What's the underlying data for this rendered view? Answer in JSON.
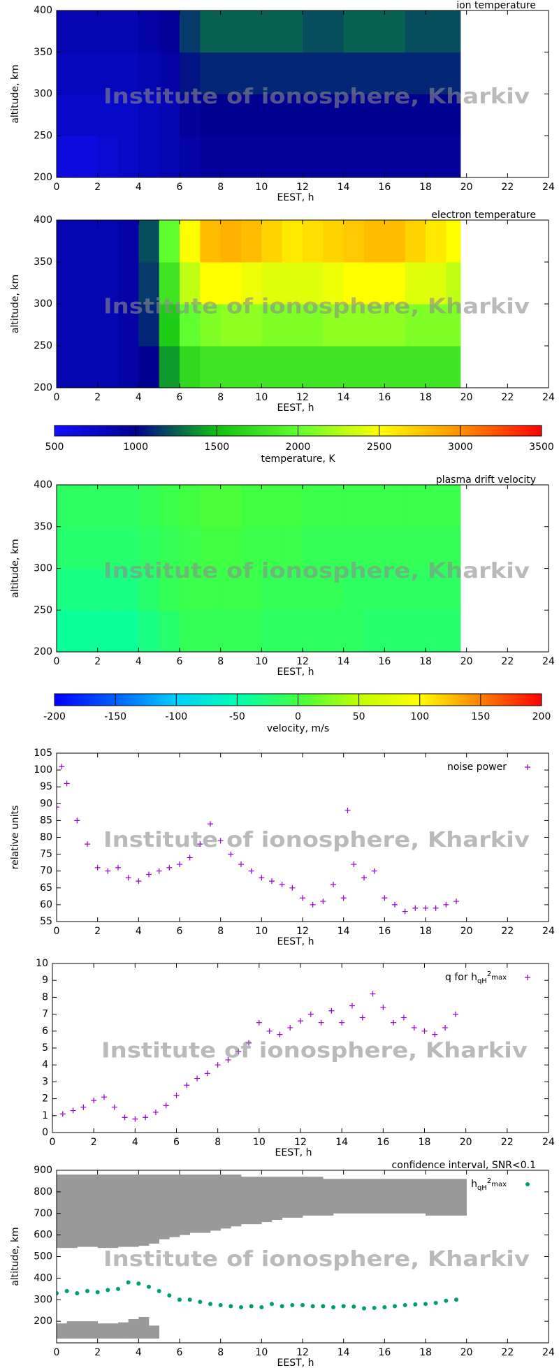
{
  "chart_data": [
    {
      "type": "heatmap",
      "title": "ion temperature",
      "xlabel": "EEST, h",
      "ylabel": "altitude, km",
      "watermark": "Institute of ionosphere, Kharkiv",
      "xlim": [
        0,
        24
      ],
      "xticks": [
        0,
        2,
        4,
        6,
        8,
        10,
        12,
        14,
        16,
        18,
        20,
        22,
        24
      ],
      "ylim": [
        200,
        400
      ],
      "yticks": [
        200,
        250,
        300,
        350,
        400
      ],
      "clim": [
        500,
        3500
      ],
      "colors": [
        "#1010ff",
        "#000090",
        "#10c010",
        "#60ff30",
        "#ffff00",
        "#ff9000",
        "#ff0000"
      ],
      "xbins": [
        0,
        1,
        2,
        3,
        4,
        5,
        6,
        7,
        8,
        9,
        10,
        11,
        12,
        13,
        14,
        15,
        16,
        17,
        18,
        19,
        19.7
      ],
      "ybins": [
        200,
        250,
        300,
        350,
        400
      ],
      "z": [
        [
          650,
          650,
          700,
          750,
          800,
          850,
          900,
          950,
          950,
          950,
          950,
          950,
          950,
          950,
          950,
          950,
          950,
          950,
          950,
          950
        ],
        [
          750,
          750,
          750,
          750,
          800,
          850,
          950,
          1000,
          1000,
          1000,
          1000,
          1000,
          1000,
          1000,
          1000,
          1000,
          1000,
          1000,
          1000,
          1000
        ],
        [
          800,
          800,
          800,
          800,
          850,
          900,
          1050,
          1100,
          1100,
          1100,
          1100,
          1100,
          1100,
          1100,
          1100,
          1100,
          1100,
          1100,
          1100,
          1100
        ],
        [
          850,
          850,
          850,
          850,
          900,
          950,
          1150,
          1250,
          1250,
          1250,
          1250,
          1250,
          1200,
          1200,
          1250,
          1250,
          1250,
          1200,
          1200,
          1200
        ]
      ]
    },
    {
      "type": "heatmap",
      "title": "electron temperature",
      "xlabel": "EEST, h",
      "ylabel": "altitude, km",
      "watermark": "Institute of ionosphere, Kharkiv",
      "xlim": [
        0,
        24
      ],
      "xticks": [
        0,
        2,
        4,
        6,
        8,
        10,
        12,
        14,
        16,
        18,
        20,
        22,
        24
      ],
      "ylim": [
        200,
        400
      ],
      "yticks": [
        200,
        250,
        300,
        350,
        400
      ],
      "clim": [
        500,
        3500
      ],
      "colors": [
        "#1010ff",
        "#000090",
        "#10c010",
        "#60ff30",
        "#ffff00",
        "#ff9000",
        "#ff0000"
      ],
      "xbins": [
        0,
        1,
        2,
        3,
        4,
        5,
        6,
        7,
        8,
        9,
        10,
        11,
        12,
        13,
        14,
        15,
        16,
        17,
        18,
        19,
        19.7
      ],
      "ybins": [
        200,
        250,
        300,
        350,
        400
      ],
      "z": [
        [
          850,
          850,
          850,
          900,
          1000,
          1400,
          1700,
          1800,
          1800,
          1800,
          1800,
          1800,
          1800,
          1800,
          1800,
          1800,
          1800,
          1800,
          1800,
          1800
        ],
        [
          850,
          850,
          850,
          900,
          1100,
          1600,
          2000,
          2100,
          2150,
          2150,
          2100,
          2100,
          2100,
          2150,
          2150,
          2150,
          2150,
          2100,
          2100,
          2100
        ],
        [
          850,
          850,
          850,
          900,
          1150,
          1800,
          2300,
          2500,
          2500,
          2450,
          2400,
          2400,
          2400,
          2450,
          2500,
          2500,
          2500,
          2400,
          2400,
          2300
        ],
        [
          850,
          850,
          850,
          900,
          1200,
          2000,
          2500,
          2800,
          2850,
          2800,
          2700,
          2600,
          2650,
          2700,
          2750,
          2800,
          2800,
          2700,
          2600,
          2500
        ]
      ],
      "colorbar": {
        "label": "temperature, K",
        "ticks": [
          500,
          1000,
          1500,
          2000,
          2500,
          3000,
          3500
        ]
      }
    },
    {
      "type": "heatmap",
      "title": "plasma drift velocity",
      "xlabel": "EEST, h",
      "ylabel": "altitude, km",
      "watermark": "Institute of ionosphere, Kharkiv",
      "xlim": [
        0,
        24
      ],
      "xticks": [
        0,
        2,
        4,
        6,
        8,
        10,
        12,
        14,
        16,
        18,
        20,
        22,
        24
      ],
      "ylim": [
        200,
        400
      ],
      "yticks": [
        200,
        250,
        300,
        350,
        400
      ],
      "clim": [
        -200,
        200
      ],
      "colors": [
        "#0000ff",
        "#0060ff",
        "#00d0ff",
        "#00ffb0",
        "#40ff40",
        "#c0ff00",
        "#ffff00",
        "#ff8000",
        "#ff0000"
      ],
      "xbins": [
        0,
        1,
        2,
        3,
        4,
        5,
        6,
        7,
        8,
        9,
        10,
        11,
        12,
        13,
        14,
        15,
        16,
        17,
        18,
        19,
        19.7
      ],
      "ybins": [
        200,
        250,
        300,
        350,
        400
      ],
      "z": [
        [
          -40,
          -40,
          -40,
          -40,
          -30,
          -20,
          -10,
          -10,
          -10,
          -10,
          -15,
          -15,
          -15,
          -15,
          -15,
          -20,
          -20,
          -20,
          -20,
          -20
        ],
        [
          -30,
          -30,
          -30,
          -30,
          -20,
          -10,
          -5,
          -5,
          -5,
          -5,
          -10,
          -10,
          -10,
          -10,
          -15,
          -15,
          -15,
          -15,
          -15,
          -15
        ],
        [
          -20,
          -20,
          -20,
          -20,
          -15,
          -10,
          -5,
          0,
          0,
          -5,
          -5,
          -5,
          -10,
          -10,
          -10,
          -10,
          -10,
          -10,
          -10,
          -10
        ],
        [
          -15,
          -15,
          -15,
          -15,
          -10,
          -5,
          0,
          5,
          5,
          0,
          0,
          0,
          -5,
          -5,
          -5,
          -5,
          -5,
          -5,
          -5,
          -5
        ]
      ],
      "colorbar": {
        "label": "velocity, m/s",
        "ticks": [
          -200,
          -150,
          -100,
          -50,
          0,
          50,
          100,
          150,
          200
        ]
      }
    },
    {
      "type": "scatter",
      "xlabel": "EEST, h",
      "ylabel": "relative units",
      "watermark": "Institute of ionosphere, Kharkiv",
      "xlim": [
        0,
        24
      ],
      "xticks": [
        0,
        2,
        4,
        6,
        8,
        10,
        12,
        14,
        16,
        18,
        20,
        22,
        24
      ],
      "ylim": [
        55,
        105
      ],
      "yticks": [
        55,
        60,
        65,
        70,
        75,
        80,
        85,
        90,
        95,
        100,
        105
      ],
      "series": [
        {
          "name": "noise power",
          "color": "#9400d3",
          "marker": "plus",
          "x": [
            0,
            0.25,
            0.5,
            1,
            1.5,
            2,
            2.5,
            3,
            3.5,
            4,
            4.5,
            5,
            5.5,
            6,
            6.5,
            7,
            7.5,
            8,
            8.5,
            9,
            9.5,
            10,
            10.5,
            11,
            11.5,
            12,
            12.5,
            13,
            13.5,
            14,
            14.2,
            14.5,
            15,
            15.5,
            16,
            16.5,
            17,
            17.5,
            18,
            18.5,
            19,
            19.5
          ],
          "values": [
            89,
            101,
            96,
            85,
            78,
            71,
            70,
            71,
            68,
            67,
            69,
            70,
            71,
            72,
            74,
            78,
            84,
            79,
            75,
            72,
            70,
            68,
            67,
            66,
            65,
            62,
            60,
            61,
            66,
            62,
            88,
            72,
            68,
            70,
            62,
            60,
            58,
            59,
            59,
            59,
            60,
            61
          ]
        }
      ]
    },
    {
      "type": "scatter",
      "xlabel": "EEST, h",
      "watermark": "Institute of ionosphere, Kharkiv",
      "xlim": [
        0,
        24
      ],
      "xticks": [
        0,
        2,
        4,
        6,
        8,
        10,
        12,
        14,
        16,
        18,
        20,
        22,
        24
      ],
      "ylim": [
        0,
        10
      ],
      "yticks": [
        0,
        1,
        2,
        3,
        4,
        5,
        6,
        7,
        8,
        9,
        10
      ],
      "series": [
        {
          "name": [
            "q for h",
            "qH",
            "2",
            "max"
          ],
          "color": "#9400d3",
          "marker": "plus",
          "x": [
            0,
            0.5,
            1,
            1.5,
            2,
            2.5,
            3,
            3.5,
            4,
            4.5,
            5,
            5.5,
            6,
            6.5,
            7,
            7.5,
            8,
            8.5,
            9,
            9.5,
            10,
            10.5,
            11,
            11.5,
            12,
            12.5,
            13,
            13.5,
            14,
            14.5,
            15,
            15.5,
            16,
            16.5,
            17,
            17.5,
            18,
            18.5,
            19,
            19.5
          ],
          "values": [
            1,
            1.1,
            1.3,
            1.5,
            1.9,
            2.1,
            1.5,
            0.9,
            0.8,
            0.9,
            1.2,
            1.6,
            2.2,
            2.8,
            3.2,
            3.5,
            4,
            4.3,
            4.8,
            5.3,
            6.5,
            6,
            5.8,
            6.2,
            6.6,
            7,
            6.5,
            7.2,
            6.5,
            7.5,
            6.8,
            8.2,
            7.4,
            6.5,
            6.8,
            6.2,
            6,
            5.8,
            6.2,
            7
          ]
        }
      ]
    },
    {
      "type": "interval",
      "title": "confidence interval, SNR<0.1",
      "xlabel": "EEST, h",
      "ylabel": "altitude, km",
      "watermark": "Institute of ionosphere, Kharkiv",
      "xlim": [
        0,
        24
      ],
      "xticks": [
        0,
        2,
        4,
        6,
        8,
        10,
        12,
        14,
        16,
        18,
        20,
        22,
        24
      ],
      "ylim": [
        100,
        900
      ],
      "yticks": [
        200,
        300,
        400,
        500,
        600,
        700,
        800,
        900
      ],
      "intervals": {
        "color": "#999999",
        "x": [
          0,
          0.5,
          1,
          1.5,
          2,
          2.5,
          3,
          3.5,
          4,
          4.5,
          5,
          5.5,
          6,
          6.5,
          7,
          7.5,
          8,
          8.5,
          9,
          9.5,
          10,
          10.5,
          11,
          11.5,
          12,
          12.5,
          13,
          13.5,
          14,
          14.5,
          15,
          15.5,
          16,
          16.5,
          17,
          17.5,
          18,
          18.5,
          19,
          19.5,
          0,
          0.5,
          1,
          1.5,
          2,
          2.5,
          3,
          3.5,
          4,
          4.5
        ],
        "low": [
          540,
          540,
          545,
          545,
          540,
          540,
          545,
          545,
          550,
          560,
          580,
          590,
          600,
          610,
          610,
          620,
          630,
          640,
          650,
          650,
          660,
          670,
          680,
          680,
          690,
          690,
          690,
          700,
          700,
          700,
          700,
          700,
          700,
          700,
          700,
          700,
          690,
          690,
          690,
          690,
          120,
          120,
          120,
          120,
          120,
          120,
          120,
          120,
          120,
          120
        ],
        "high": [
          880,
          880,
          880,
          880,
          880,
          880,
          880,
          880,
          880,
          880,
          880,
          880,
          880,
          880,
          880,
          880,
          880,
          880,
          870,
          870,
          870,
          870,
          870,
          870,
          870,
          870,
          860,
          860,
          860,
          860,
          860,
          860,
          860,
          860,
          860,
          860,
          860,
          860,
          860,
          860,
          190,
          200,
          200,
          200,
          190,
          190,
          195,
          210,
          220,
          180
        ]
      },
      "series": [
        {
          "name": [
            "h",
            "qH",
            "2",
            "max"
          ],
          "color": "#009e73",
          "marker": "dot",
          "x": [
            0,
            0.5,
            1,
            1.5,
            2,
            2.5,
            3,
            3.5,
            4,
            4.5,
            5,
            5.5,
            6,
            6.5,
            7,
            7.5,
            8,
            8.5,
            9,
            9.5,
            10,
            10.5,
            11,
            11.5,
            12,
            12.5,
            13,
            13.5,
            14,
            14.5,
            15,
            15.5,
            16,
            16.5,
            17,
            17.5,
            18,
            18.5,
            19,
            19.5
          ],
          "values": [
            330,
            340,
            330,
            340,
            335,
            345,
            350,
            380,
            375,
            360,
            340,
            320,
            300,
            300,
            290,
            280,
            275,
            270,
            265,
            270,
            265,
            280,
            270,
            275,
            275,
            270,
            270,
            265,
            270,
            268,
            260,
            262,
            265,
            270,
            275,
            278,
            280,
            285,
            295,
            300
          ]
        }
      ]
    }
  ]
}
